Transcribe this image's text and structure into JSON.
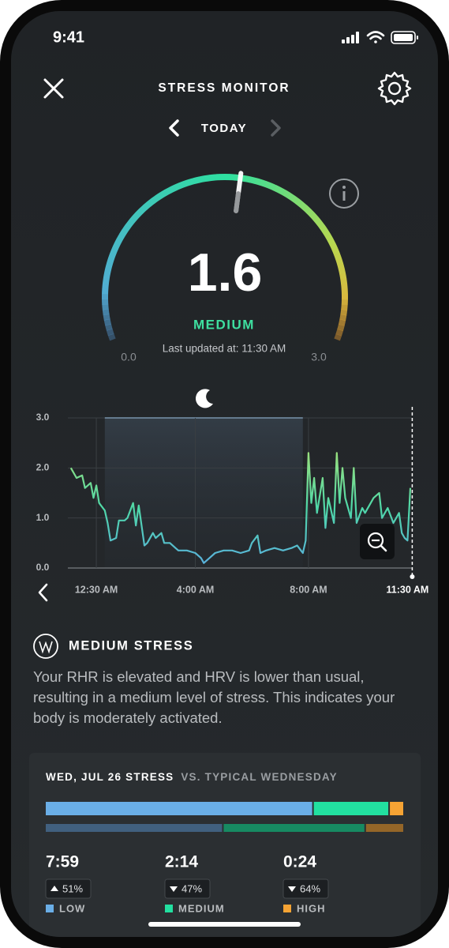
{
  "status_bar": {
    "time": "9:41"
  },
  "header": {
    "title": "STRESS MONITOR",
    "date": "TODAY"
  },
  "gauge": {
    "value": 1.6,
    "level": "MEDIUM",
    "updated": "Last updated at: 11:30 AM",
    "min": {
      "value": 0,
      "label": "0.0"
    },
    "max": {
      "value": 3,
      "label": "3.0"
    }
  },
  "chart_data": {
    "type": "line",
    "x": [
      -0.4,
      -0.2,
      0,
      0.1,
      0.3,
      0.4,
      0.5,
      0.6,
      0.8,
      0.9,
      1.0,
      1.2,
      1.3,
      1.5,
      1.6,
      1.8,
      1.9,
      2.0,
      2.2,
      2.3,
      2.5,
      2.6,
      2.8,
      2.9,
      3.1,
      3.3,
      3.4,
      3.7,
      4.0,
      4.2,
      4.3,
      4.5,
      4.7,
      5.0,
      5.3,
      5.6,
      5.9,
      6.0,
      6.2,
      6.3,
      6.5,
      6.8,
      7.1,
      7.4,
      7.6,
      7.8,
      7.9,
      8.0,
      8.1,
      8.2,
      8.3,
      8.5,
      8.6,
      8.7,
      8.9,
      9.0,
      9.1,
      9.2,
      9.3,
      9.5,
      9.6,
      9.7,
      9.9,
      10.0,
      10.2,
      10.3,
      10.5,
      10.6,
      10.8,
      11.0,
      11.2,
      11.3,
      11.4,
      11.5,
      11.6
    ],
    "series": [
      {
        "colors": [
          "#9ee07a",
          "#4fd8a8",
          "#5aaee0"
        ],
        "values": [
          2.0,
          1.8,
          1.85,
          1.6,
          1.7,
          1.4,
          1.65,
          1.3,
          1.15,
          0.9,
          0.55,
          0.6,
          0.95,
          0.95,
          1.0,
          1.3,
          0.85,
          1.25,
          0.45,
          0.5,
          0.7,
          0.6,
          0.7,
          0.5,
          0.5,
          0.4,
          0.35,
          0.35,
          0.3,
          0.2,
          0.1,
          0.2,
          0.3,
          0.35,
          0.35,
          0.3,
          0.35,
          0.5,
          0.65,
          0.3,
          0.35,
          0.4,
          0.35,
          0.4,
          0.45,
          0.3,
          0.55,
          2.3,
          1.3,
          1.8,
          1.1,
          1.8,
          0.8,
          1.4,
          0.9,
          2.3,
          1.3,
          2.0,
          1.4,
          1.0,
          2.0,
          0.9,
          1.2,
          1.1,
          1.3,
          1.4,
          1.5,
          1.0,
          1.2,
          0.9,
          1.1,
          0.7,
          0.6,
          0.55,
          1.6
        ]
      }
    ],
    "sleep": [
      0.8,
      7.8
    ],
    "xlim": [
      -0.45,
      11.6
    ],
    "xticks": [
      {
        "value": 0.5,
        "label": "12:30 AM"
      },
      {
        "value": 4,
        "label": "4:00 AM"
      },
      {
        "value": 8,
        "label": "8:00 AM"
      },
      {
        "value": 11.5,
        "label": "11:30 AM"
      }
    ],
    "ylim": [
      0,
      3
    ],
    "yticks": [
      {
        "value": 0,
        "label": "0.0"
      },
      {
        "value": 1,
        "label": "1.0"
      },
      {
        "value": 2,
        "label": "2.0"
      },
      {
        "value": 3,
        "label": "3.0"
      }
    ],
    "grid": true
  },
  "summary": {
    "title": "MEDIUM STRESS",
    "text": "Your RHR is elevated and HRV is lower than usual, resulting in a medium level of stress. This indicates your body is moderately activated."
  },
  "comparison": {
    "title": "WED, JUL 26 STRESS",
    "versus": "VS. TYPICAL WEDNESDAY",
    "items": [
      {
        "duration": "7:59",
        "minutes": 479,
        "typical_minutes": 317,
        "change": "51%",
        "direction": "up",
        "label": "LOW",
        "color": "#6aaee6",
        "typical_color": "#41607f"
      },
      {
        "duration": "2:14",
        "minutes": 134,
        "typical_minutes": 253,
        "change": "47%",
        "direction": "down",
        "label": "MEDIUM",
        "color": "#22e0a0",
        "typical_color": "#178a62"
      },
      {
        "duration": "0:24",
        "minutes": 24,
        "typical_minutes": 67,
        "change": "64%",
        "direction": "down",
        "label": "HIGH",
        "color": "#f5a334",
        "typical_color": "#946628"
      }
    ]
  }
}
